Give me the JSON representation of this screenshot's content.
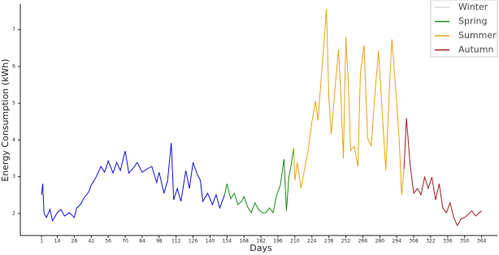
{
  "chart_data": {
    "type": "line",
    "xlabel": "Days",
    "ylabel": "Energy Consumption (kWh)",
    "xlim": [
      -16.5,
      377
    ],
    "ylim": [
      1.4,
      7.7
    ],
    "xticks": [
      1,
      14,
      28,
      42,
      56,
      70,
      84,
      98,
      112,
      126,
      140,
      154,
      168,
      182,
      196,
      210,
      224,
      238,
      252,
      266,
      280,
      294,
      308,
      322,
      336,
      350,
      364
    ],
    "yticks": [
      2,
      3,
      4,
      5,
      6,
      7
    ],
    "legend": "upper right",
    "series": [
      {
        "color": "#1010d0",
        "x": [
          1,
          2,
          3,
          5,
          8,
          10,
          14,
          17,
          20,
          24,
          28,
          30,
          33,
          36,
          40,
          42,
          46,
          50,
          53,
          56,
          60,
          63,
          66,
          70,
          73,
          76,
          80,
          84,
          88,
          92,
          96,
          98,
          102,
          105,
          108,
          110,
          113,
          116,
          120,
          123,
          126,
          129,
          132,
          134,
          138,
          142,
          145,
          148,
          152
        ],
        "values": [
          2.51,
          2.81,
          2.02,
          1.89,
          2.11,
          1.8,
          2.02,
          2.11,
          1.93,
          2.02,
          1.89,
          2.15,
          2.24,
          2.42,
          2.59,
          2.77,
          2.99,
          3.28,
          3.12,
          3.43,
          3.1,
          3.39,
          3.17,
          3.7,
          3.1,
          3.21,
          3.39,
          3.12,
          3.21,
          3.28,
          2.84,
          3.12,
          2.55,
          2.9,
          3.92,
          2.37,
          2.68,
          2.33,
          3.17,
          2.68,
          3.39,
          3.1,
          2.9,
          2.33,
          2.55,
          2.24,
          2.51,
          2.15,
          2.51
        ]
      },
      {
        "name": "Winter",
        "color": "#d9d9d9",
        "x": [],
        "values": []
      },
      {
        "name": "Spring",
        "color": "#1a8a1a",
        "x": [
          152,
          154,
          157,
          160,
          163,
          166,
          168,
          171,
          174,
          177,
          180,
          183,
          186,
          189,
          192,
          195,
          198,
          201,
          203,
          205,
          207,
          209
        ],
        "values": [
          2.51,
          2.81,
          2.4,
          2.55,
          2.24,
          2.33,
          2.46,
          2.18,
          2.02,
          2.29,
          2.11,
          2.02,
          2.02,
          2.15,
          2.02,
          2.51,
          2.77,
          3.48,
          2.07,
          2.99,
          3.34,
          3.78
        ]
      },
      {
        "name": "Summer",
        "color": "#e8a317",
        "x": [
          209,
          210,
          212,
          215,
          218,
          221,
          224,
          227,
          229,
          232,
          234,
          236,
          238,
          240,
          243,
          246,
          248,
          250,
          252,
          254,
          256,
          259,
          262,
          264,
          267,
          270,
          273,
          276,
          279,
          282,
          285,
          288,
          290,
          293,
          296,
          298,
          300
        ],
        "values": [
          3.78,
          2.9,
          3.39,
          2.68,
          3.21,
          3.74,
          4.49,
          5.06,
          4.53,
          5.81,
          6.65,
          7.57,
          5.15,
          4.16,
          5.37,
          6.47,
          5.15,
          3.5,
          6.8,
          5.59,
          3.72,
          3.83,
          3.28,
          5.81,
          6.58,
          4.05,
          3.83,
          5.26,
          6.43,
          4.75,
          3.17,
          5.41,
          6.74,
          5.48,
          4.05,
          2.51,
          3.21
        ]
      },
      {
        "name": "Autumn",
        "color": "#9b2020",
        "x": [
          300,
          302,
          305,
          308,
          311,
          314,
          317,
          320,
          323,
          326,
          329,
          332,
          335,
          338,
          341,
          344,
          347,
          350,
          353,
          356,
          359,
          362,
          364
        ],
        "values": [
          3.21,
          4.6,
          3.34,
          2.55,
          2.68,
          2.51,
          2.99,
          2.68,
          2.99,
          2.37,
          2.81,
          2.15,
          2.02,
          2.29,
          1.89,
          1.67,
          1.85,
          1.89,
          1.98,
          2.07,
          1.93,
          2.02,
          2.07
        ]
      }
    ]
  }
}
